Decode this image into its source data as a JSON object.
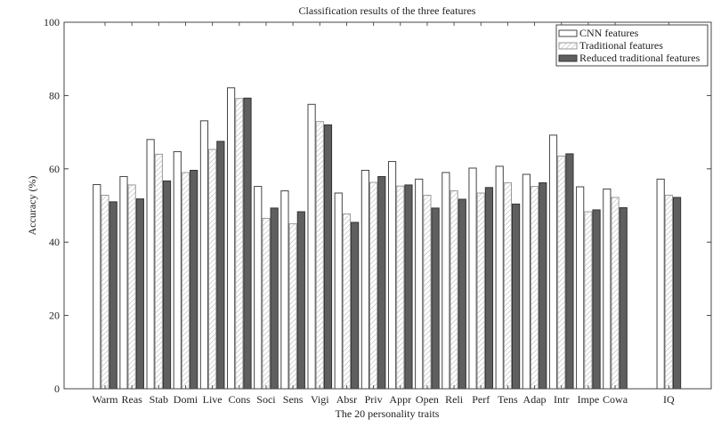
{
  "chart_data": {
    "type": "bar",
    "title": "Classification results of the three features",
    "xlabel": "The 20 personality traits",
    "ylabel": "Accuracy (%)",
    "ylim": [
      0,
      100
    ],
    "yticks": [
      0,
      20,
      40,
      60,
      80,
      100
    ],
    "grid": false,
    "legend_position": "top-right",
    "categories": [
      "Warm",
      "Reas",
      "Stab",
      "Domi",
      "Live",
      "Cons",
      "Soci",
      "Sens",
      "Vigi",
      "Absr",
      "Priv",
      "Appr",
      "Open",
      "Reli",
      "Perf",
      "Tens",
      "Adap",
      "Intr",
      "Impe",
      "Cowa",
      "IQ"
    ],
    "series": [
      {
        "name": "CNN features",
        "style": "white",
        "values": [
          55.7,
          57.9,
          68.0,
          64.7,
          73.1,
          82.1,
          55.2,
          54.0,
          77.6,
          53.4,
          59.6,
          62.0,
          57.2,
          59.0,
          60.2,
          60.7,
          58.5,
          69.2,
          55.1,
          54.5,
          57.2
        ]
      },
      {
        "name": "Traditional features",
        "style": "hatched",
        "values": [
          52.8,
          55.6,
          64.0,
          59.0,
          65.3,
          79.2,
          46.5,
          45.0,
          72.9,
          47.7,
          56.3,
          55.3,
          52.8,
          54.0,
          53.4,
          56.2,
          55.2,
          63.5,
          48.3,
          52.2,
          52.8
        ]
      },
      {
        "name": "Reduced traditional features",
        "style": "dark",
        "color": "#5f5f5f",
        "values": [
          51.0,
          51.8,
          56.7,
          59.6,
          67.5,
          79.3,
          49.3,
          48.3,
          72.0,
          45.4,
          57.9,
          55.6,
          49.3,
          51.7,
          54.9,
          50.4,
          56.2,
          64.1,
          48.8,
          49.4,
          52.2
        ]
      }
    ]
  }
}
